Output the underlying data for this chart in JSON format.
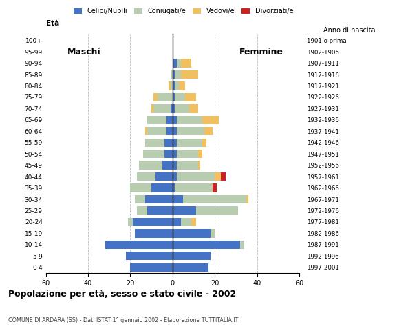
{
  "title": "Popolazione per età, sesso e stato civile - 2002",
  "subtitle": "COMUNE DI ARDARA (SS) - Dati ISTAT 1° gennaio 2002 - Elaborazione TUTTITALIA.IT",
  "age_groups": [
    "0-4",
    "5-9",
    "10-14",
    "15-19",
    "20-24",
    "25-29",
    "30-34",
    "35-39",
    "40-44",
    "45-49",
    "50-54",
    "55-59",
    "60-64",
    "65-69",
    "70-74",
    "75-79",
    "80-84",
    "85-89",
    "90-94",
    "95-99",
    "100+"
  ],
  "birth_years": [
    "1997-2001",
    "1992-1996",
    "1987-1991",
    "1982-1986",
    "1977-1981",
    "1972-1976",
    "1967-1971",
    "1962-1966",
    "1957-1961",
    "1952-1956",
    "1947-1951",
    "1942-1946",
    "1937-1941",
    "1932-1936",
    "1927-1931",
    "1922-1926",
    "1917-1921",
    "1912-1916",
    "1907-1911",
    "1902-1906",
    "1901 o prima"
  ],
  "males": {
    "celibe": [
      20,
      22,
      32,
      18,
      19,
      12,
      13,
      10,
      8,
      5,
      4,
      4,
      3,
      3,
      1,
      0,
      0,
      0,
      0,
      0,
      0
    ],
    "coniugato": [
      0,
      0,
      0,
      0,
      2,
      5,
      5,
      10,
      9,
      11,
      10,
      9,
      9,
      9,
      8,
      7,
      1,
      1,
      0,
      0,
      0
    ],
    "vedovo": [
      0,
      0,
      0,
      0,
      0,
      0,
      0,
      0,
      0,
      0,
      0,
      0,
      1,
      0,
      1,
      2,
      1,
      0,
      0,
      0,
      0
    ],
    "divorziato": [
      0,
      0,
      0,
      0,
      0,
      0,
      0,
      0,
      0,
      0,
      0,
      0,
      0,
      0,
      0,
      0,
      0,
      0,
      0,
      0,
      0
    ]
  },
  "females": {
    "nubile": [
      17,
      18,
      32,
      18,
      4,
      11,
      5,
      1,
      2,
      2,
      2,
      2,
      2,
      2,
      1,
      1,
      1,
      1,
      2,
      0,
      0
    ],
    "coniugata": [
      0,
      0,
      2,
      2,
      5,
      20,
      30,
      18,
      18,
      10,
      10,
      12,
      13,
      12,
      7,
      5,
      2,
      3,
      2,
      0,
      0
    ],
    "vedova": [
      0,
      0,
      0,
      0,
      2,
      0,
      1,
      0,
      3,
      1,
      2,
      2,
      4,
      8,
      4,
      5,
      3,
      8,
      5,
      0,
      0
    ],
    "divorziata": [
      0,
      0,
      0,
      0,
      0,
      0,
      0,
      2,
      2,
      0,
      0,
      0,
      0,
      0,
      0,
      0,
      0,
      0,
      0,
      0,
      0
    ]
  },
  "colors": {
    "celibe_nubile": "#4472C4",
    "coniugato_a": "#B8CCB0",
    "vedovo_a": "#F0C060",
    "divorziato_a": "#CC2222"
  },
  "xlim": 60,
  "legend_labels": [
    "Celibi/Nubili",
    "Coniugati/e",
    "Vedovi/e",
    "Divorziati/e"
  ],
  "label_maschi": "Maschi",
  "label_femmine": "Femmine",
  "ylabel_left": "Età",
  "ylabel_right": "Anno di nascita",
  "bg_color": "#FFFFFF",
  "grid_color": "#BBBBBB"
}
